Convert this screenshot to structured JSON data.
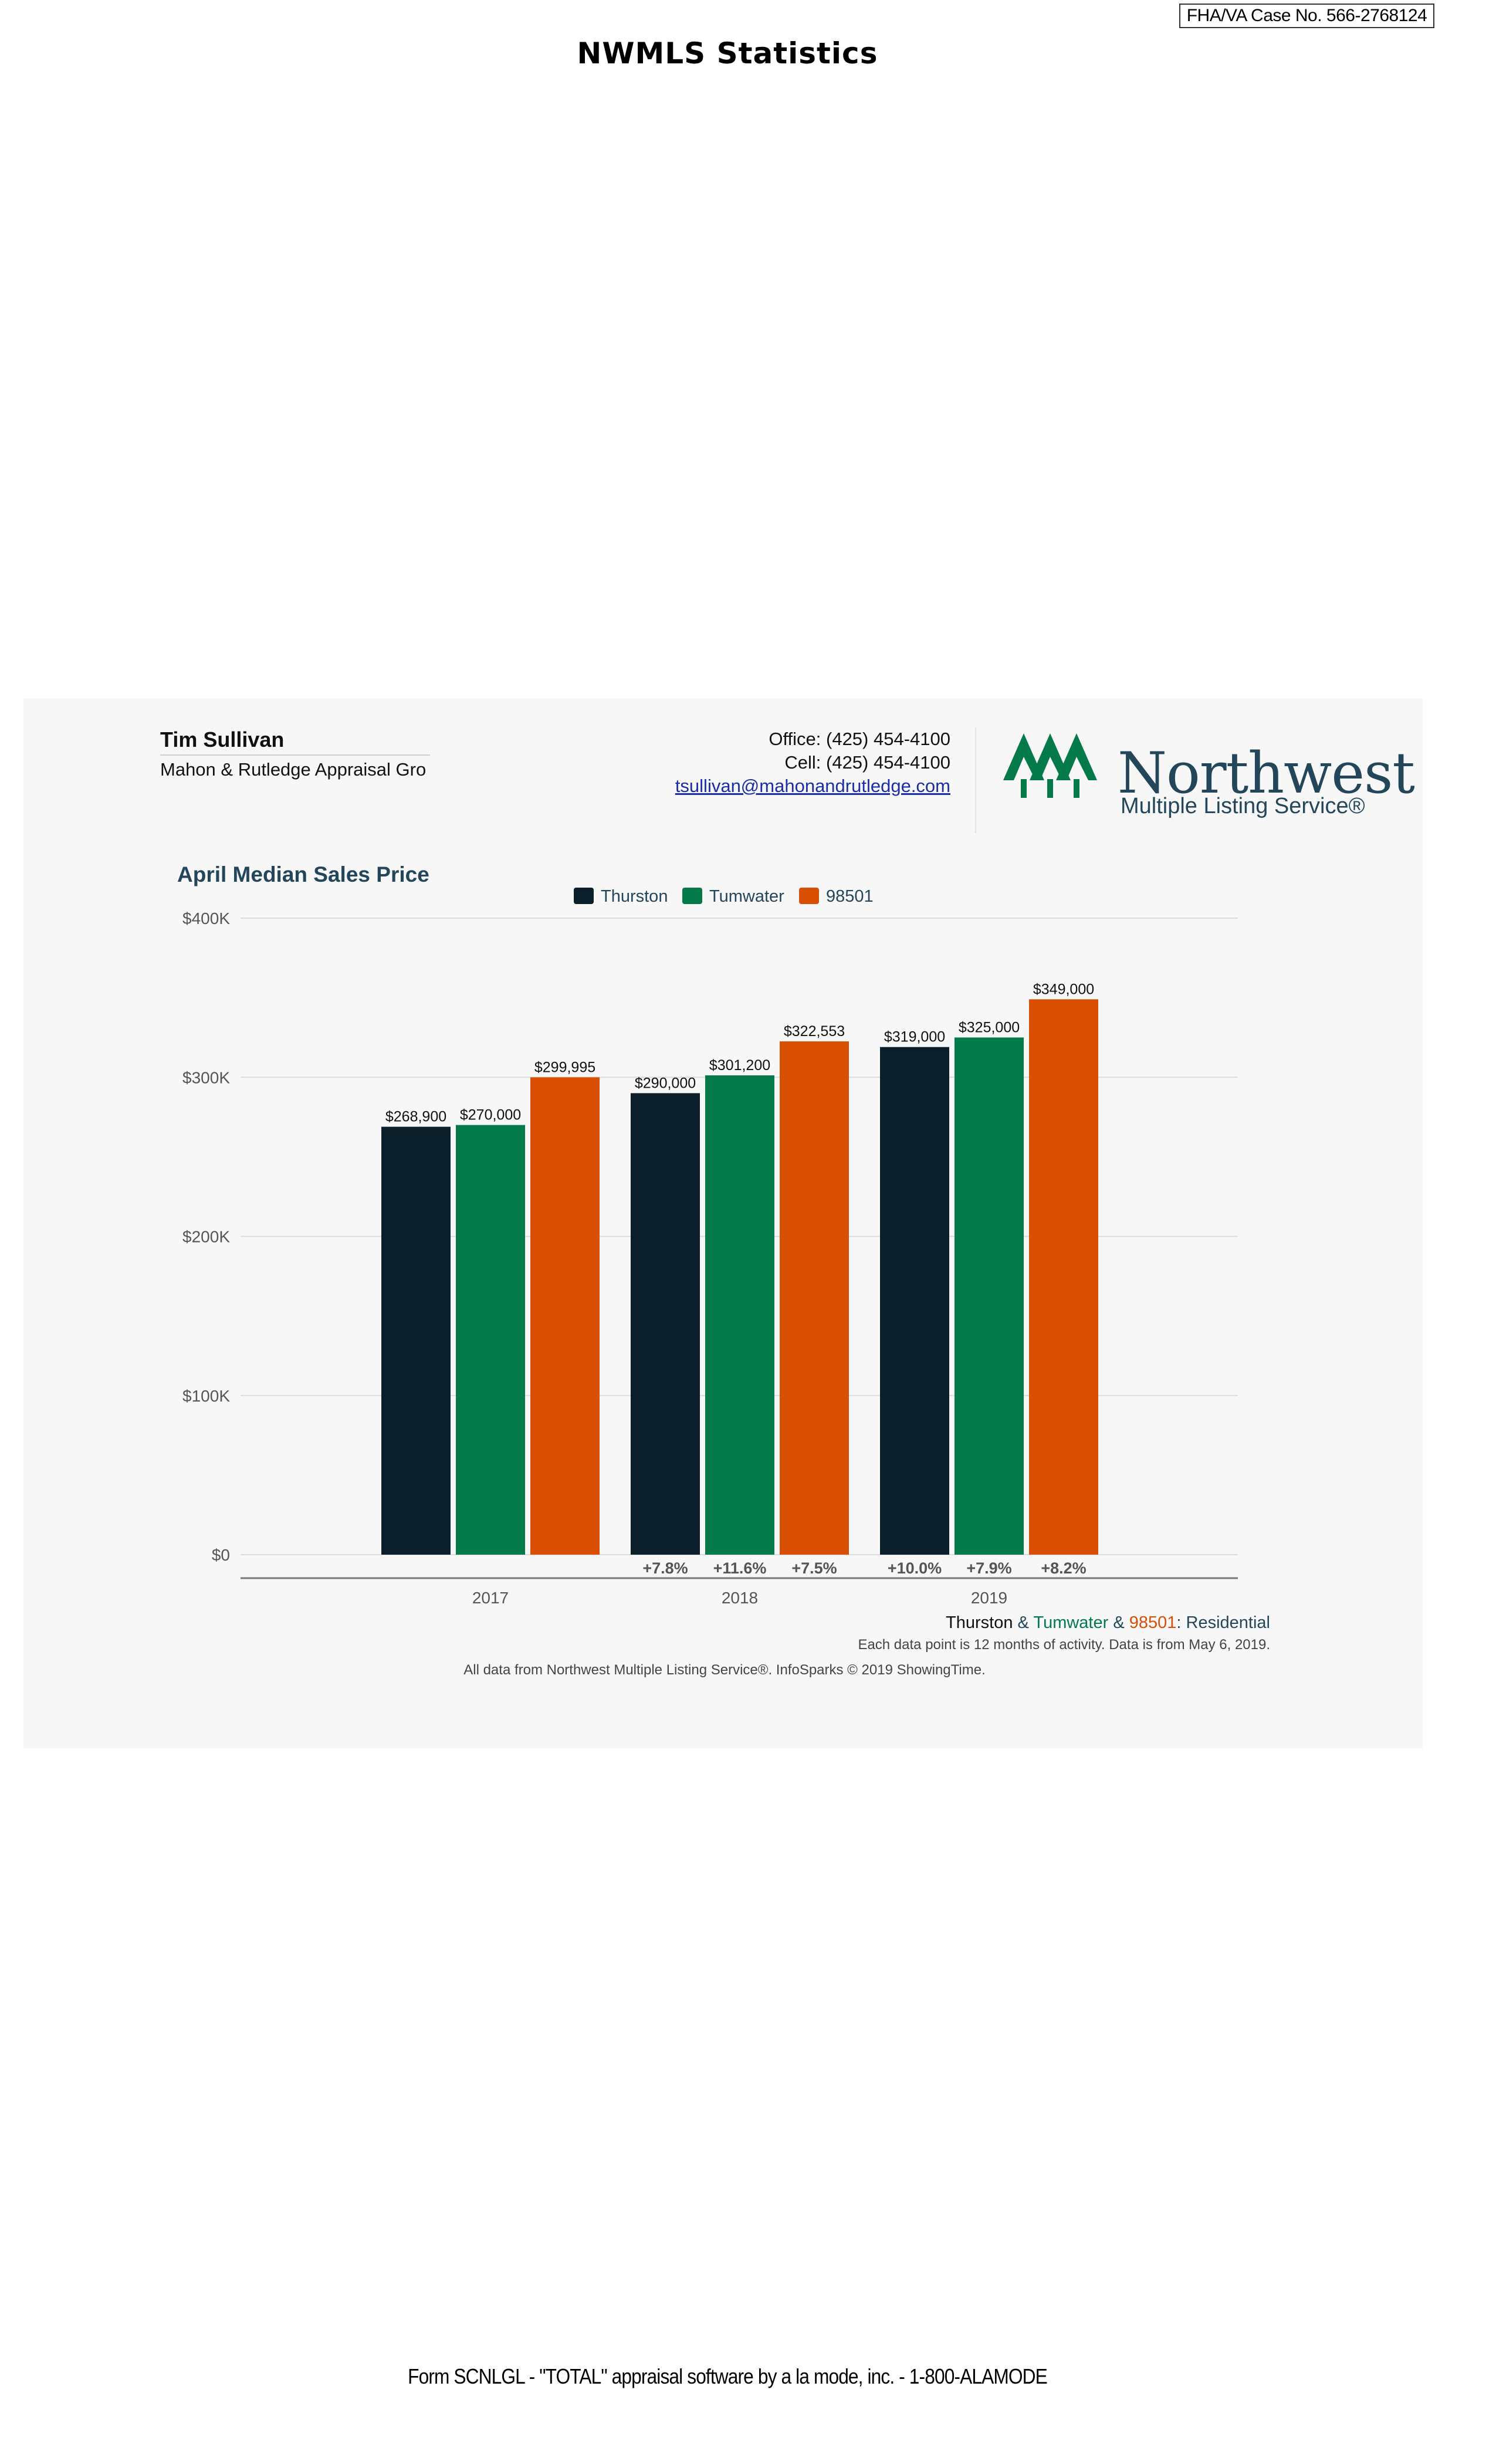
{
  "header": {
    "case_number": "FHA/VA Case No. 566-2768124",
    "title": "NWMLS Statistics"
  },
  "agent": {
    "name": "Tim Sullivan",
    "company": "Mahon & Rutledge Appraisal Gro",
    "office": "Office: (425) 454-4100",
    "cell": "Cell: (425) 454-4100",
    "email": "tsullivan@mahonandrutledge.com"
  },
  "logo": {
    "name": "Northwest",
    "subtitle": "Multiple Listing Service®"
  },
  "colors": {
    "thurston": "#0a1f2a",
    "tumwater": "#047a4a",
    "zip98501": "#d94f04",
    "title": "#23465a"
  },
  "chart_data": {
    "type": "bar",
    "title": "April Median Sales Price",
    "categories": [
      "2017",
      "2018",
      "2019"
    ],
    "ylim": [
      0,
      400000
    ],
    "yticks": [
      "$0",
      "$100K",
      "$200K",
      "$300K",
      "$400K"
    ],
    "grid": true,
    "legend_position": "top-center",
    "series": [
      {
        "name": "Thurston",
        "color": "#0a1f2a",
        "values": [
          268900,
          290000,
          319000
        ],
        "labels": [
          "$268,900",
          "$290,000",
          "$319,000"
        ],
        "changes": [
          "",
          "+7.8%",
          "+10.0%"
        ]
      },
      {
        "name": "Tumwater",
        "color": "#047a4a",
        "values": [
          270000,
          301200,
          325000
        ],
        "labels": [
          "$270,000",
          "$301,200",
          "$325,000"
        ],
        "changes": [
          "",
          "+11.6%",
          "+7.9%"
        ]
      },
      {
        "name": "98501",
        "color": "#d94f04",
        "values": [
          299995,
          322553,
          349000
        ],
        "labels": [
          "$299,995",
          "$322,553",
          "$349,000"
        ],
        "changes": [
          "",
          "+7.5%",
          "+8.2%"
        ]
      }
    ],
    "source_label": {
      "part1": "Thurston",
      "sep1": " & ",
      "part2": "Tumwater",
      "sep2": " & ",
      "part3": "98501",
      "part4": ": Residential"
    },
    "note": "Each data point is 12 months of activity. Data is from May 6, 2019.",
    "credit": "All data from Northwest Multiple Listing Service®. InfoSparks © 2019 ShowingTime."
  },
  "footer": "Form SCNLGL - \"TOTAL\" appraisal software by a la mode, inc. - 1-800-ALAMODE"
}
